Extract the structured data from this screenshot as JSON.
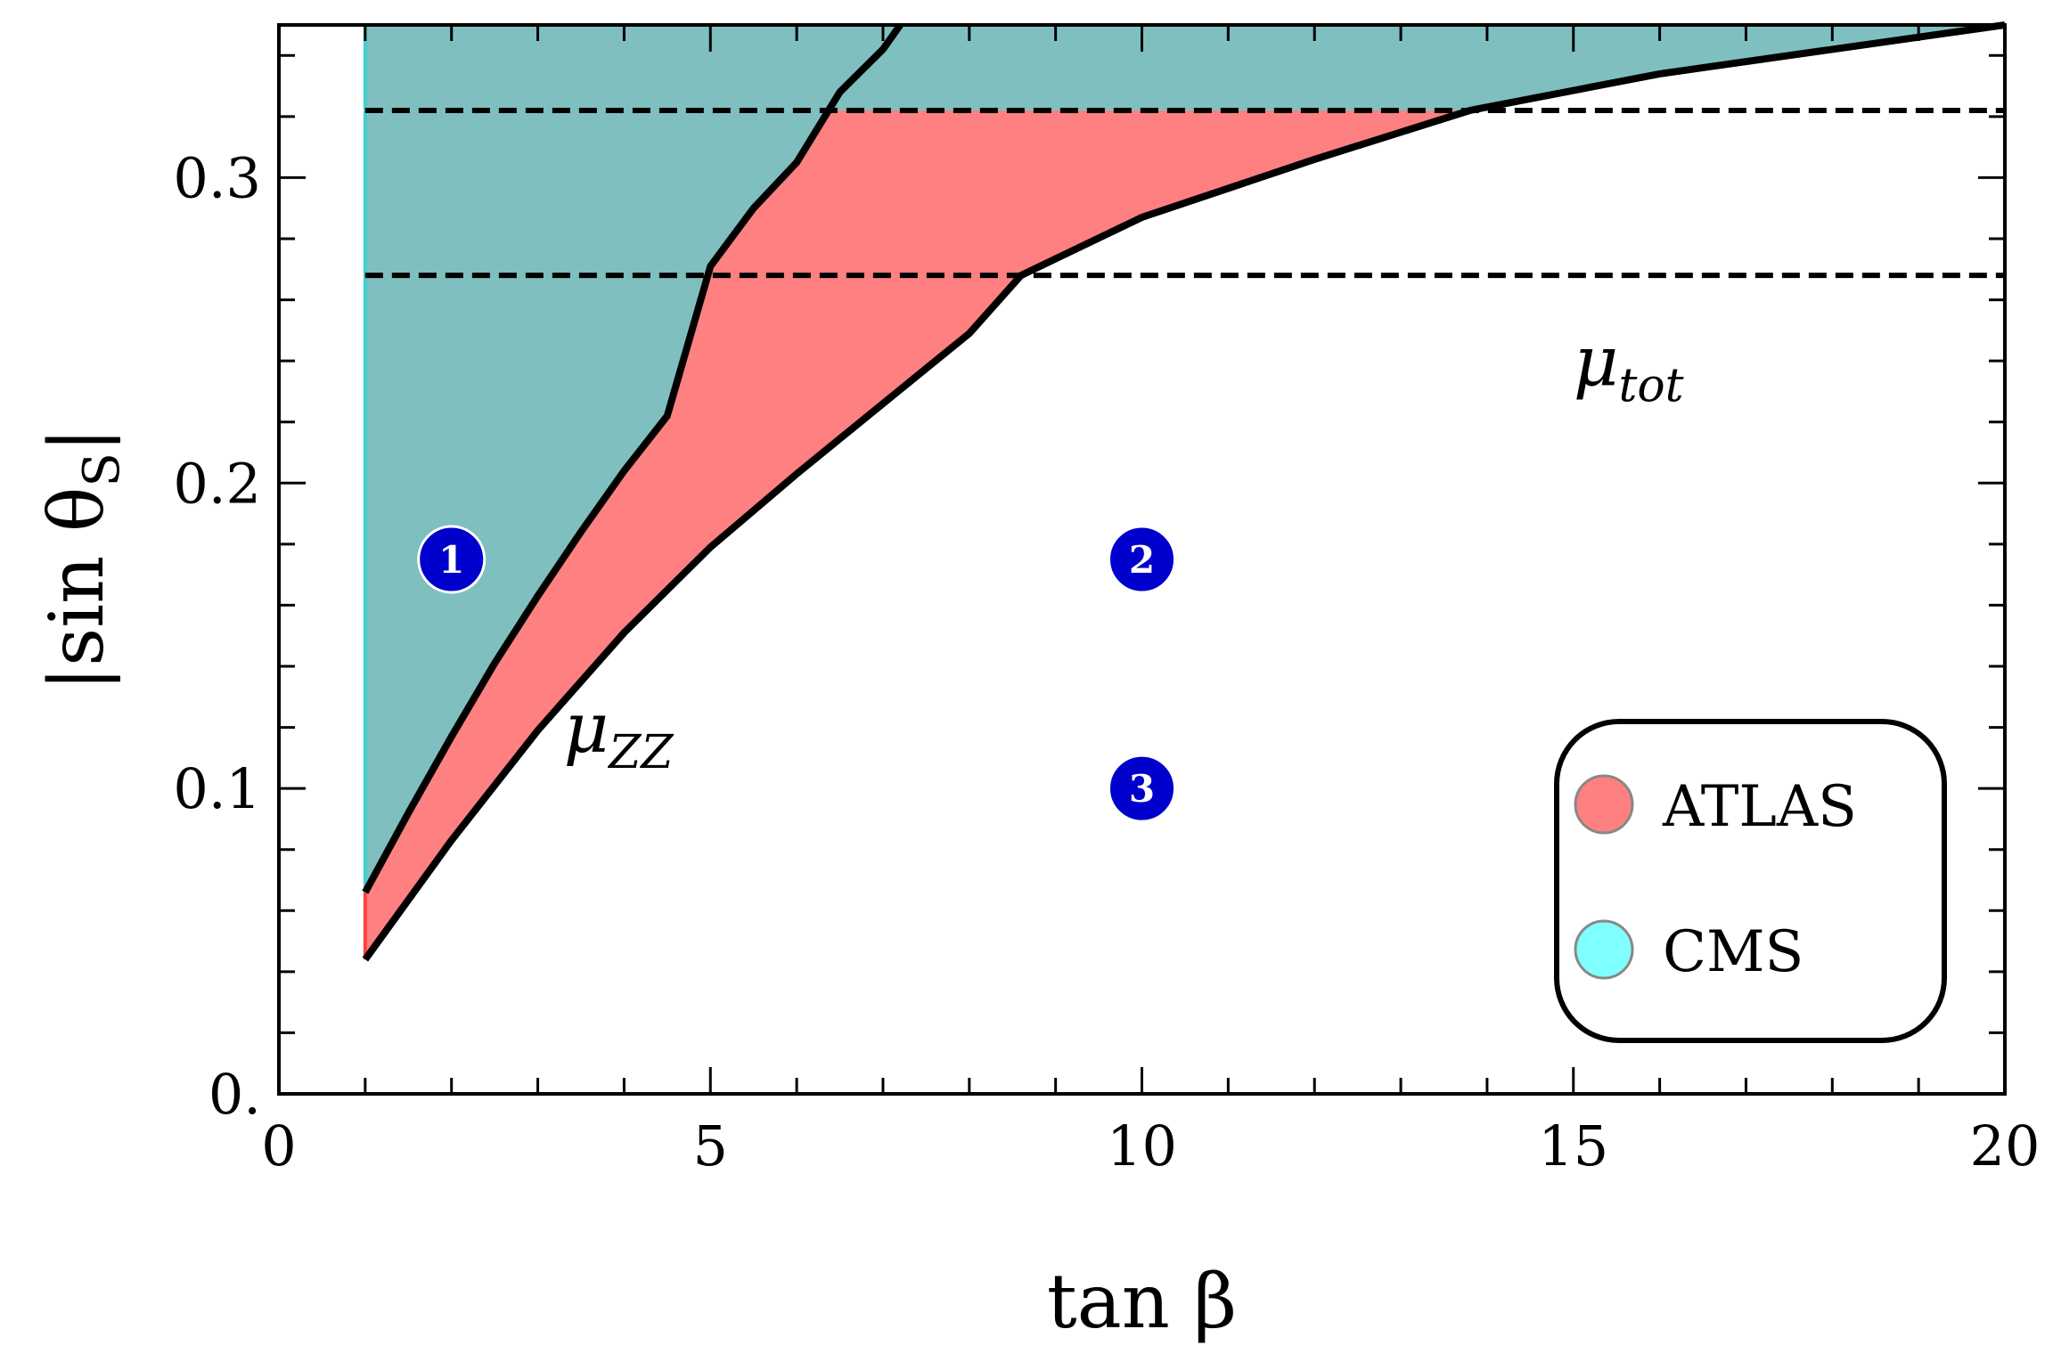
{
  "chart_data": {
    "type": "area",
    "xlabel": "tan β",
    "ylabel": "|sin θ_S|",
    "xlim": [
      0,
      20
    ],
    "ylim": [
      0,
      0.35
    ],
    "x_ticks": [
      0,
      5,
      10,
      15,
      20
    ],
    "x_tick_labels": [
      "0",
      "5",
      "10",
      "15",
      "20"
    ],
    "y_ticks": [
      0,
      0.1,
      0.2,
      0.3
    ],
    "y_tick_labels": [
      "0.",
      "0.1",
      "0.2",
      "0.3"
    ],
    "grid": false,
    "legend_position": "bottom-right",
    "colors": {
      "atlas_fill": "#ff8080",
      "cms_fill": "#80bfbf",
      "cms_legend": "#80ffff",
      "curve": "#000000",
      "marker": "#0000cc"
    },
    "series": [
      {
        "name": "μ_ZZ",
        "type": "line",
        "x": [
          1,
          1.5,
          2,
          2.5,
          3,
          3.5,
          4,
          4.5,
          5,
          5.5,
          6,
          6.5,
          7,
          7.2
        ],
        "y": [
          0.066,
          0.092,
          0.117,
          0.141,
          0.163,
          0.184,
          0.204,
          0.222,
          0.271,
          0.29,
          0.305,
          0.328,
          0.342,
          0.35
        ]
      },
      {
        "name": "μ_tot",
        "type": "line",
        "x": [
          1,
          2,
          3,
          4,
          5,
          6,
          7,
          8,
          8.6,
          10,
          12,
          13.8,
          16,
          18,
          20
        ],
        "y": [
          0.044,
          0.083,
          0.119,
          0.151,
          0.179,
          0.203,
          0.226,
          0.249,
          0.268,
          0.287,
          0.306,
          0.322,
          0.334,
          0.342,
          0.35
        ]
      },
      {
        "name": "ATLAS",
        "type": "band",
        "y_min": 0.268,
        "y_max": 0.32
      },
      {
        "name": "CMS",
        "type": "band",
        "y_min": 0.268,
        "y_max": 0.322
      }
    ],
    "benchmark_points": [
      {
        "label": "1",
        "x": 2,
        "y": 0.175
      },
      {
        "label": "2",
        "x": 10,
        "y": 0.175
      },
      {
        "label": "3",
        "x": 10,
        "y": 0.1
      }
    ],
    "annotations": [
      {
        "text": "μ_ZZ",
        "x": 3.3,
        "y": 0.112
      },
      {
        "text": "μ_tot",
        "x": 15,
        "y": 0.232
      }
    ],
    "legend": [
      {
        "label": "ATLAS",
        "color": "#ff8080"
      },
      {
        "label": "CMS",
        "color": "#80ffff"
      }
    ]
  }
}
